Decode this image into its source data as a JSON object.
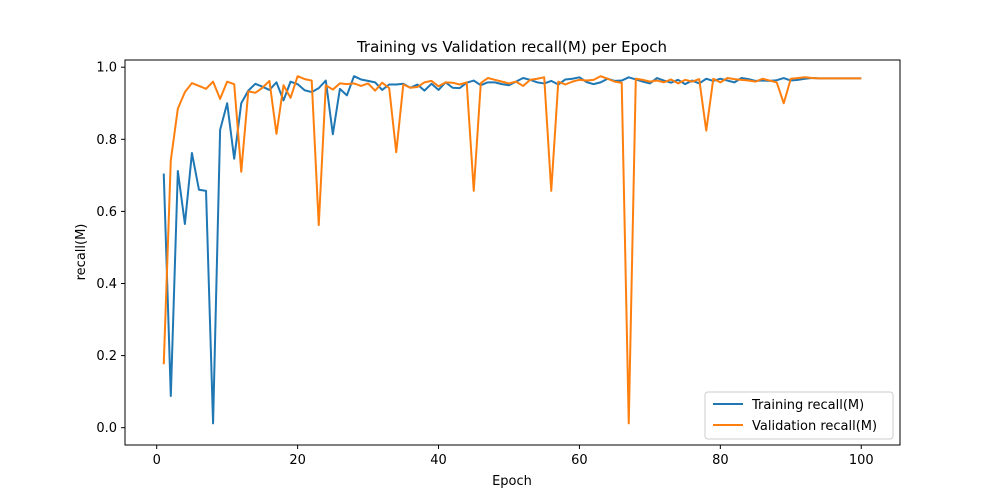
{
  "chart_data": {
    "type": "line",
    "title": "Training vs Validation recall(M) per Epoch",
    "xlabel": "Epoch",
    "ylabel": "recall(M)",
    "xlim": [
      -4.5,
      105.5
    ],
    "ylim": [
      -0.048,
      1.02
    ],
    "xticks": [
      0,
      20,
      40,
      60,
      80,
      100
    ],
    "yticks": [
      0.0,
      0.2,
      0.4,
      0.6,
      0.8,
      1.0
    ],
    "xtick_labels": [
      "0",
      "20",
      "40",
      "60",
      "80",
      "100"
    ],
    "ytick_labels": [
      "0.0",
      "0.2",
      "0.4",
      "0.6",
      "0.8",
      "1.0"
    ],
    "grid": false,
    "legend_position": "lower-right",
    "x": [
      1,
      2,
      3,
      4,
      5,
      6,
      7,
      8,
      9,
      10,
      11,
      12,
      13,
      14,
      15,
      16,
      17,
      18,
      19,
      20,
      21,
      22,
      23,
      24,
      25,
      26,
      27,
      28,
      29,
      30,
      31,
      32,
      33,
      34,
      35,
      36,
      37,
      38,
      39,
      40,
      41,
      42,
      43,
      44,
      45,
      46,
      47,
      48,
      49,
      50,
      51,
      52,
      53,
      54,
      55,
      56,
      57,
      58,
      59,
      60,
      61,
      62,
      63,
      64,
      65,
      66,
      67,
      68,
      69,
      70,
      71,
      72,
      73,
      74,
      75,
      76,
      77,
      78,
      79,
      80,
      81,
      82,
      83,
      84,
      85,
      86,
      87,
      88,
      89,
      90,
      91,
      92,
      93,
      94,
      95,
      96,
      97,
      98,
      99,
      100
    ],
    "series": [
      {
        "name": "Training recall(M)",
        "color": "#1f77b4",
        "values": [
          0.705,
          0.088,
          0.712,
          0.565,
          0.762,
          0.66,
          0.657,
          0.012,
          0.826,
          0.9,
          0.746,
          0.9,
          0.935,
          0.954,
          0.946,
          0.937,
          0.958,
          0.908,
          0.96,
          0.953,
          0.936,
          0.931,
          0.942,
          0.963,
          0.814,
          0.94,
          0.922,
          0.975,
          0.966,
          0.962,
          0.958,
          0.937,
          0.952,
          0.952,
          0.954,
          0.943,
          0.952,
          0.935,
          0.954,
          0.937,
          0.958,
          0.943,
          0.942,
          0.957,
          0.963,
          0.95,
          0.958,
          0.958,
          0.953,
          0.95,
          0.96,
          0.97,
          0.965,
          0.958,
          0.955,
          0.962,
          0.952,
          0.966,
          0.968,
          0.972,
          0.959,
          0.953,
          0.958,
          0.968,
          0.962,
          0.963,
          0.972,
          0.966,
          0.96,
          0.955,
          0.97,
          0.963,
          0.957,
          0.965,
          0.953,
          0.963,
          0.955,
          0.968,
          0.962,
          0.968,
          0.963,
          0.958,
          0.97,
          0.967,
          0.962,
          0.963,
          0.962,
          0.964,
          0.97,
          0.963,
          0.965,
          0.968,
          0.97,
          0.969,
          0.969,
          0.969,
          0.969,
          0.969,
          0.969,
          0.969
        ]
      },
      {
        "name": "Validation recall(M)",
        "color": "#ff7f0e",
        "values": [
          0.176,
          0.742,
          0.885,
          0.931,
          0.956,
          0.948,
          0.94,
          0.96,
          0.912,
          0.96,
          0.953,
          0.71,
          0.933,
          0.929,
          0.943,
          0.962,
          0.815,
          0.95,
          0.915,
          0.975,
          0.967,
          0.963,
          0.562,
          0.95,
          0.938,
          0.955,
          0.953,
          0.955,
          0.948,
          0.955,
          0.935,
          0.957,
          0.942,
          0.764,
          0.952,
          0.943,
          0.945,
          0.958,
          0.962,
          0.947,
          0.958,
          0.957,
          0.952,
          0.958,
          0.657,
          0.956,
          0.97,
          0.965,
          0.96,
          0.955,
          0.96,
          0.948,
          0.965,
          0.968,
          0.972,
          0.657,
          0.96,
          0.952,
          0.96,
          0.965,
          0.963,
          0.965,
          0.975,
          0.968,
          0.96,
          0.957,
          0.012,
          0.968,
          0.965,
          0.96,
          0.963,
          0.958,
          0.966,
          0.955,
          0.965,
          0.96,
          0.967,
          0.824,
          0.968,
          0.958,
          0.97,
          0.967,
          0.965,
          0.963,
          0.96,
          0.968,
          0.963,
          0.958,
          0.9,
          0.968,
          0.97,
          0.972,
          0.97,
          0.969,
          0.969,
          0.969,
          0.969,
          0.969,
          0.969,
          0.969
        ]
      }
    ]
  }
}
